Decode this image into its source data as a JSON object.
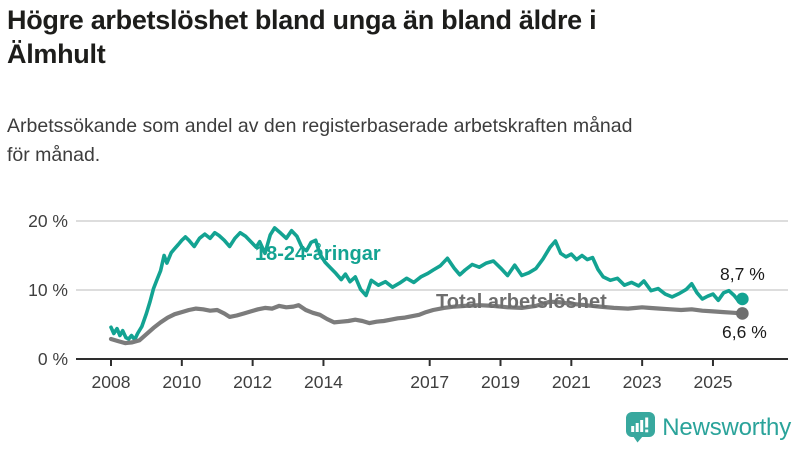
{
  "header": {
    "title_line1": "Högre arbetslöshet bland unga än bland äldre i",
    "title_line2": "Älmhult",
    "subtitle_line1": "Arbetssökande som andel av den registerbaserade arbetskraften månad",
    "subtitle_line2": "för månad."
  },
  "chart_data": {
    "type": "line",
    "unit": "%",
    "ylim": [
      0,
      20
    ],
    "grid": "horizontal",
    "yticks": [
      {
        "value": 0,
        "label": "0 %"
      },
      {
        "value": 10,
        "label": "10 %"
      },
      {
        "value": 20,
        "label": "20 %"
      }
    ],
    "xticks": [
      2008,
      2010,
      2012,
      2014,
      2017,
      2019,
      2021,
      2023,
      2025
    ],
    "colors": {
      "grid": "#d8d8d8",
      "axis": "#2e2e2e",
      "tick_text": "#3f3f3f",
      "value_label": "#1a1a1a"
    },
    "series": [
      {
        "name": "18-24-åringar",
        "color": "#13A392",
        "label_color": "#13A392",
        "end_label": "8,7 %",
        "end_value": 8.7,
        "points": [
          [
            2008.0,
            4.6
          ],
          [
            2008.08,
            3.7
          ],
          [
            2008.17,
            4.4
          ],
          [
            2008.25,
            3.4
          ],
          [
            2008.33,
            4.1
          ],
          [
            2008.42,
            3.1
          ],
          [
            2008.5,
            2.9
          ],
          [
            2008.58,
            3.4
          ],
          [
            2008.67,
            2.8
          ],
          [
            2008.75,
            3.7
          ],
          [
            2008.87,
            4.7
          ],
          [
            2009.0,
            6.6
          ],
          [
            2009.1,
            8.3
          ],
          [
            2009.2,
            10.2
          ],
          [
            2009.3,
            11.5
          ],
          [
            2009.4,
            12.8
          ],
          [
            2009.5,
            15.0
          ],
          [
            2009.58,
            13.9
          ],
          [
            2009.7,
            15.4
          ],
          [
            2009.8,
            16.0
          ],
          [
            2009.9,
            16.6
          ],
          [
            2010.0,
            17.2
          ],
          [
            2010.1,
            17.7
          ],
          [
            2010.2,
            17.2
          ],
          [
            2010.35,
            16.3
          ],
          [
            2010.5,
            17.5
          ],
          [
            2010.65,
            18.1
          ],
          [
            2010.8,
            17.5
          ],
          [
            2010.93,
            18.3
          ],
          [
            2011.05,
            17.9
          ],
          [
            2011.2,
            17.2
          ],
          [
            2011.35,
            16.3
          ],
          [
            2011.5,
            17.5
          ],
          [
            2011.65,
            18.3
          ],
          [
            2011.8,
            17.8
          ],
          [
            2011.95,
            17.0
          ],
          [
            2012.1,
            16.2
          ],
          [
            2012.2,
            17.0
          ],
          [
            2012.35,
            15.3
          ],
          [
            2012.5,
            18.0
          ],
          [
            2012.62,
            19.0
          ],
          [
            2012.8,
            18.2
          ],
          [
            2012.95,
            17.5
          ],
          [
            2013.1,
            18.6
          ],
          [
            2013.25,
            17.8
          ],
          [
            2013.4,
            16.1
          ],
          [
            2013.52,
            15.7
          ],
          [
            2013.65,
            16.9
          ],
          [
            2013.78,
            17.2
          ],
          [
            2013.9,
            15.2
          ],
          [
            2014.05,
            14.0
          ],
          [
            2014.2,
            13.2
          ],
          [
            2014.35,
            12.4
          ],
          [
            2014.5,
            11.5
          ],
          [
            2014.62,
            12.3
          ],
          [
            2014.75,
            11.2
          ],
          [
            2014.9,
            11.9
          ],
          [
            2015.05,
            10.1
          ],
          [
            2015.2,
            9.2
          ],
          [
            2015.35,
            11.4
          ],
          [
            2015.55,
            10.7
          ],
          [
            2015.75,
            11.2
          ],
          [
            2015.95,
            10.4
          ],
          [
            2016.15,
            11.0
          ],
          [
            2016.35,
            11.7
          ],
          [
            2016.55,
            11.1
          ],
          [
            2016.75,
            11.9
          ],
          [
            2016.95,
            12.4
          ],
          [
            2017.1,
            12.9
          ],
          [
            2017.3,
            13.5
          ],
          [
            2017.5,
            14.6
          ],
          [
            2017.7,
            13.1
          ],
          [
            2017.85,
            12.2
          ],
          [
            2018.0,
            12.9
          ],
          [
            2018.2,
            13.7
          ],
          [
            2018.4,
            13.3
          ],
          [
            2018.6,
            13.9
          ],
          [
            2018.8,
            14.2
          ],
          [
            2019.0,
            13.2
          ],
          [
            2019.2,
            12.1
          ],
          [
            2019.4,
            13.6
          ],
          [
            2019.6,
            12.1
          ],
          [
            2019.8,
            12.5
          ],
          [
            2020.0,
            13.1
          ],
          [
            2020.2,
            14.5
          ],
          [
            2020.4,
            16.2
          ],
          [
            2020.55,
            17.1
          ],
          [
            2020.7,
            15.3
          ],
          [
            2020.85,
            14.8
          ],
          [
            2021.0,
            15.2
          ],
          [
            2021.15,
            14.4
          ],
          [
            2021.3,
            15.0
          ],
          [
            2021.45,
            14.4
          ],
          [
            2021.6,
            14.7
          ],
          [
            2021.75,
            13.0
          ],
          [
            2021.9,
            11.9
          ],
          [
            2022.1,
            11.4
          ],
          [
            2022.3,
            11.7
          ],
          [
            2022.5,
            10.7
          ],
          [
            2022.7,
            11.1
          ],
          [
            2022.9,
            10.6
          ],
          [
            2023.05,
            11.3
          ],
          [
            2023.25,
            9.9
          ],
          [
            2023.45,
            10.2
          ],
          [
            2023.65,
            9.4
          ],
          [
            2023.85,
            9.0
          ],
          [
            2024.05,
            9.5
          ],
          [
            2024.25,
            10.1
          ],
          [
            2024.4,
            10.9
          ],
          [
            2024.55,
            9.6
          ],
          [
            2024.7,
            8.7
          ],
          [
            2024.85,
            9.1
          ],
          [
            2025.0,
            9.4
          ],
          [
            2025.15,
            8.5
          ],
          [
            2025.3,
            9.6
          ],
          [
            2025.45,
            9.9
          ],
          [
            2025.6,
            9.2
          ],
          [
            2025.72,
            8.4
          ],
          [
            2025.83,
            8.7
          ]
        ]
      },
      {
        "name": "Total arbetslöshet",
        "color": "#7C7C7C",
        "label_color": "#6E6E6E",
        "end_label": "6,6 %",
        "end_value": 6.6,
        "points": [
          [
            2008.0,
            2.9
          ],
          [
            2008.2,
            2.6
          ],
          [
            2008.4,
            2.3
          ],
          [
            2008.6,
            2.4
          ],
          [
            2008.8,
            2.7
          ],
          [
            2009.0,
            3.6
          ],
          [
            2009.2,
            4.5
          ],
          [
            2009.4,
            5.3
          ],
          [
            2009.6,
            6.0
          ],
          [
            2009.8,
            6.5
          ],
          [
            2010.0,
            6.8
          ],
          [
            2010.2,
            7.1
          ],
          [
            2010.4,
            7.3
          ],
          [
            2010.6,
            7.2
          ],
          [
            2010.8,
            7.0
          ],
          [
            2011.0,
            7.1
          ],
          [
            2011.2,
            6.6
          ],
          [
            2011.35,
            6.1
          ],
          [
            2011.55,
            6.3
          ],
          [
            2011.75,
            6.6
          ],
          [
            2011.95,
            6.9
          ],
          [
            2012.15,
            7.2
          ],
          [
            2012.35,
            7.4
          ],
          [
            2012.55,
            7.3
          ],
          [
            2012.75,
            7.7
          ],
          [
            2012.95,
            7.5
          ],
          [
            2013.15,
            7.6
          ],
          [
            2013.3,
            7.8
          ],
          [
            2013.5,
            7.1
          ],
          [
            2013.7,
            6.7
          ],
          [
            2013.9,
            6.4
          ],
          [
            2014.1,
            5.8
          ],
          [
            2014.3,
            5.3
          ],
          [
            2014.5,
            5.4
          ],
          [
            2014.7,
            5.5
          ],
          [
            2014.9,
            5.7
          ],
          [
            2015.1,
            5.5
          ],
          [
            2015.3,
            5.2
          ],
          [
            2015.5,
            5.4
          ],
          [
            2015.7,
            5.5
          ],
          [
            2015.9,
            5.7
          ],
          [
            2016.1,
            5.9
          ],
          [
            2016.3,
            6.0
          ],
          [
            2016.5,
            6.2
          ],
          [
            2016.7,
            6.4
          ],
          [
            2016.9,
            6.8
          ],
          [
            2017.1,
            7.1
          ],
          [
            2017.4,
            7.4
          ],
          [
            2017.7,
            7.6
          ],
          [
            2018.0,
            7.7
          ],
          [
            2018.4,
            7.8
          ],
          [
            2018.8,
            7.7
          ],
          [
            2019.2,
            7.5
          ],
          [
            2019.6,
            7.4
          ],
          [
            2020.0,
            7.7
          ],
          [
            2020.4,
            8.3
          ],
          [
            2020.7,
            8.2
          ],
          [
            2021.0,
            8.0
          ],
          [
            2021.4,
            7.8
          ],
          [
            2021.8,
            7.6
          ],
          [
            2022.2,
            7.4
          ],
          [
            2022.6,
            7.3
          ],
          [
            2023.0,
            7.5
          ],
          [
            2023.2,
            7.4
          ],
          [
            2023.5,
            7.3
          ],
          [
            2023.8,
            7.2
          ],
          [
            2024.1,
            7.1
          ],
          [
            2024.4,
            7.2
          ],
          [
            2024.7,
            7.0
          ],
          [
            2025.0,
            6.9
          ],
          [
            2025.3,
            6.8
          ],
          [
            2025.6,
            6.7
          ],
          [
            2025.83,
            6.6
          ]
        ]
      }
    ]
  },
  "branding": {
    "logo_text": "Newsworthy",
    "logo_text_color": "#2AA39A",
    "logo_icon_color": "#38A89E"
  }
}
